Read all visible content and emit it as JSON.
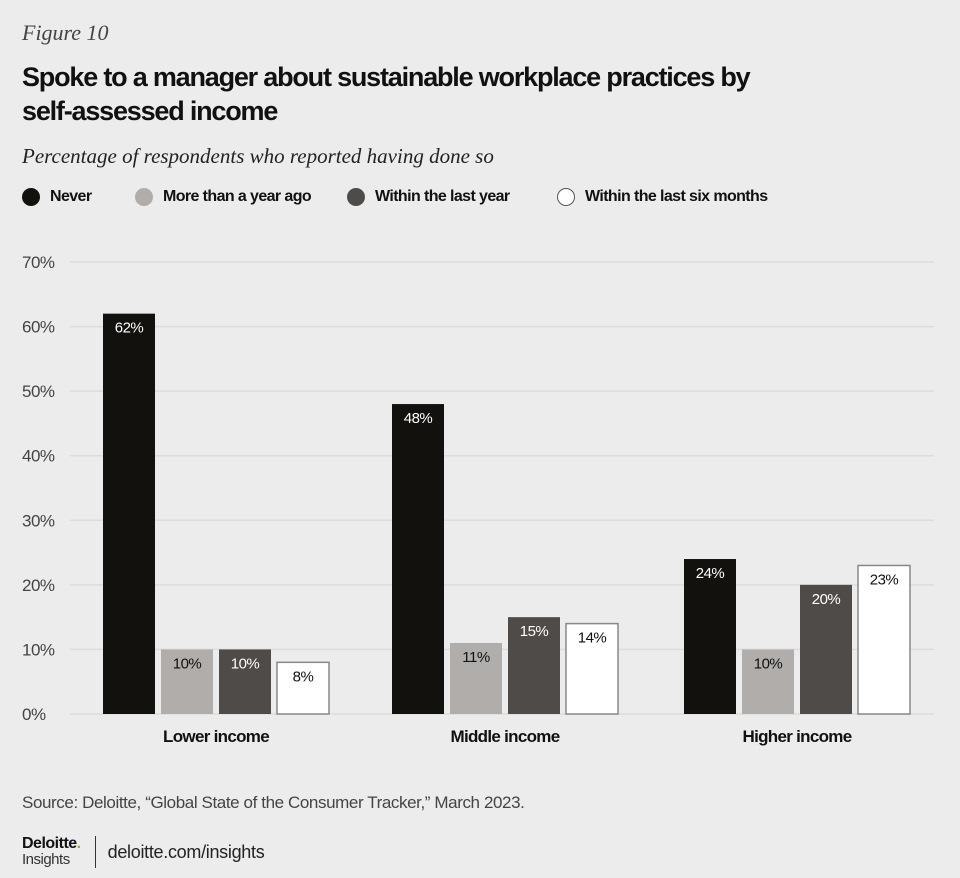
{
  "figure_label": "Figure 10",
  "title_line1": "Spoke to a manager about sustainable workplace practices by",
  "title_line2": "self-assessed income",
  "subtitle": "Percentage of respondents who reported having done so",
  "colors": {
    "never": "#12110e",
    "more_than_year": "#b0adab",
    "within_last_year": "#4f4b48",
    "within_six_months": "#ffffff",
    "background": "#ececec",
    "gridline": "#dcdcdc"
  },
  "legend": [
    {
      "label": "Never",
      "color": "#12110e"
    },
    {
      "label": "More than a year ago",
      "color": "#b0adab"
    },
    {
      "label": "Within the last year",
      "color": "#4f4b48"
    },
    {
      "label": "Within the last six months",
      "color": "#ffffff"
    }
  ],
  "chart_data": {
    "type": "bar",
    "title": "Spoke to a manager about sustainable workplace practices by self-assessed income",
    "subtitle": "Percentage of respondents who reported having done so",
    "categories": [
      "Lower income",
      "Middle income",
      "Higher income"
    ],
    "series": [
      {
        "name": "Never",
        "values": [
          62,
          48,
          24
        ]
      },
      {
        "name": "More than a year ago",
        "values": [
          10,
          11,
          10
        ]
      },
      {
        "name": "Within the last year",
        "values": [
          10,
          15,
          20
        ]
      },
      {
        "name": "Within the last six months",
        "values": [
          8,
          14,
          23
        ]
      }
    ],
    "data_labels": [
      [
        "62%",
        "48%",
        "24%"
      ],
      [
        "10%",
        "11%",
        "10%"
      ],
      [
        "10%",
        "15%",
        "20%"
      ],
      [
        "8%",
        "14%",
        "23%"
      ]
    ],
    "yticks": [
      "0%",
      "10%",
      "20%",
      "30%",
      "40%",
      "50%",
      "60%",
      "70%"
    ],
    "ylim": [
      0,
      70
    ],
    "xlabel": "",
    "ylabel": "",
    "grid": true,
    "legend_position": "top-left"
  },
  "source": "Source: Deloitte, “Global State of the Consumer Tracker,” March 2023.",
  "footer": {
    "logo_main": "Deloitte",
    "logo_dot": ".",
    "logo_sub": "Insights",
    "url": "deloitte.com/insights"
  }
}
